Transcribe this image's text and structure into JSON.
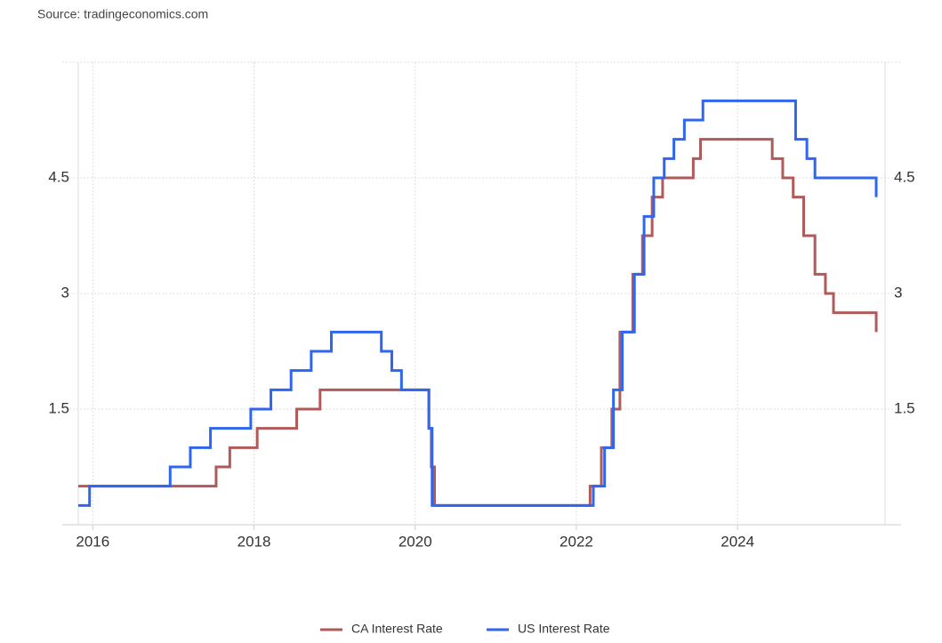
{
  "source": "Source: tradingeconomics.com",
  "chart_data": {
    "type": "line",
    "step": true,
    "xlim": [
      2015.82,
      2025.83
    ],
    "xticks": [
      2016,
      2018,
      2020,
      2022,
      2024
    ],
    "ylim": [
      0,
      6
    ],
    "yticks": [
      1.5,
      3,
      4.5
    ],
    "grid": true,
    "legend": "bottom",
    "series": [
      {
        "name": "CA Interest Rate",
        "color": "#b05a5a",
        "x": [
          2015.82,
          2017.53,
          2017.53,
          2017.7,
          2017.7,
          2018.04,
          2018.04,
          2018.53,
          2018.53,
          2018.82,
          2018.82,
          2020.17,
          2020.17,
          2020.2,
          2020.2,
          2020.24,
          2020.24,
          2022.17,
          2022.17,
          2022.31,
          2022.31,
          2022.44,
          2022.44,
          2022.54,
          2022.54,
          2022.7,
          2022.7,
          2022.82,
          2022.82,
          2022.94,
          2022.94,
          2023.07,
          2023.07,
          2023.45,
          2023.45,
          2023.54,
          2023.54,
          2024.43,
          2024.43,
          2024.56,
          2024.56,
          2024.69,
          2024.69,
          2024.82,
          2024.82,
          2024.96,
          2024.96,
          2025.09,
          2025.09,
          2025.19,
          2025.19,
          2025.72,
          2025.72
        ],
        "values": [
          0.5,
          0.5,
          0.75,
          0.75,
          1.0,
          1.0,
          1.25,
          1.25,
          1.5,
          1.5,
          1.75,
          1.75,
          1.25,
          1.25,
          0.75,
          0.75,
          0.25,
          0.25,
          0.5,
          0.5,
          1.0,
          1.0,
          1.5,
          1.5,
          2.5,
          2.5,
          3.25,
          3.25,
          3.75,
          3.75,
          4.25,
          4.25,
          4.5,
          4.5,
          4.75,
          4.75,
          5.0,
          5.0,
          4.75,
          4.75,
          4.5,
          4.5,
          4.25,
          4.25,
          3.75,
          3.75,
          3.25,
          3.25,
          3.0,
          3.0,
          2.75,
          2.75,
          2.5
        ]
      },
      {
        "name": "US Interest Rate",
        "color": "#2f66f0",
        "x": [
          2015.82,
          2015.96,
          2015.96,
          2016.96,
          2016.96,
          2017.21,
          2017.21,
          2017.46,
          2017.46,
          2017.96,
          2017.96,
          2018.21,
          2018.21,
          2018.46,
          2018.46,
          2018.71,
          2018.71,
          2018.96,
          2018.96,
          2019.58,
          2019.58,
          2019.71,
          2019.71,
          2019.83,
          2019.83,
          2020.17,
          2020.17,
          2020.21,
          2020.21,
          2022.21,
          2022.21,
          2022.35,
          2022.35,
          2022.46,
          2022.46,
          2022.57,
          2022.57,
          2022.72,
          2022.72,
          2022.84,
          2022.84,
          2022.96,
          2022.96,
          2023.09,
          2023.09,
          2023.21,
          2023.21,
          2023.34,
          2023.34,
          2023.57,
          2023.57,
          2024.72,
          2024.72,
          2024.86,
          2024.86,
          2024.96,
          2024.96,
          2025.72,
          2025.72
        ],
        "values": [
          0.25,
          0.25,
          0.5,
          0.5,
          0.75,
          0.75,
          1.0,
          1.0,
          1.25,
          1.25,
          1.5,
          1.5,
          1.75,
          1.75,
          2.0,
          2.0,
          2.25,
          2.25,
          2.5,
          2.5,
          2.25,
          2.25,
          2.0,
          2.0,
          1.75,
          1.75,
          1.25,
          1.25,
          0.25,
          0.25,
          0.5,
          0.5,
          1.0,
          1.0,
          1.75,
          1.75,
          2.5,
          2.5,
          3.25,
          3.25,
          4.0,
          4.0,
          4.5,
          4.5,
          4.75,
          4.75,
          5.0,
          5.0,
          5.25,
          5.25,
          5.5,
          5.5,
          5.0,
          5.0,
          4.75,
          4.75,
          4.5,
          4.5,
          4.25
        ]
      }
    ]
  }
}
